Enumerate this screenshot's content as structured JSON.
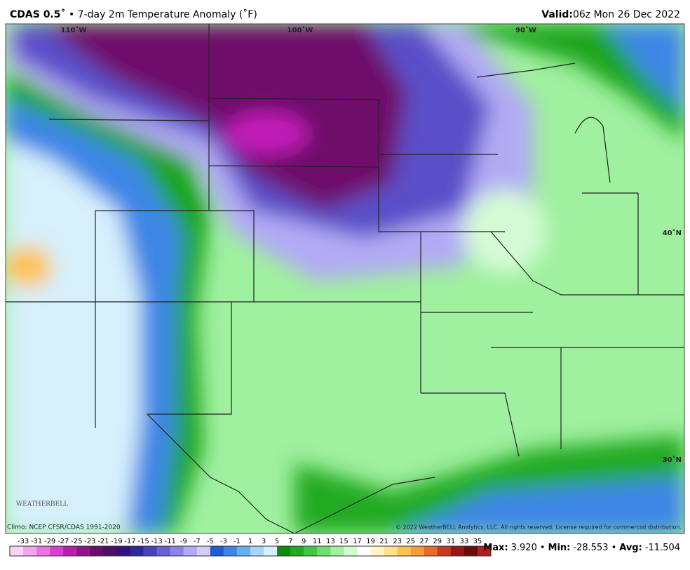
{
  "header": {
    "model": "CDAS 0.5˚",
    "title": "• 7-day 2m Temperature Anomaly (˚F)",
    "valid_label": "Valid:",
    "valid_time": "06z Mon 26 Dec 2022"
  },
  "map": {
    "lon_labels": [
      "110˚W",
      "100˚W",
      "90˚W"
    ],
    "lat_labels": [
      "40˚N",
      "30˚N"
    ],
    "logo": "WEATHERBELL",
    "climo": "Climo: NCEP CFSR/CDAS 1991-2020",
    "copyright": "© 2022 WeatherBELL Analytics, LLC. All rights reserved. License required for commercial distribution."
  },
  "colorbar": {
    "ticks": [
      -33,
      -31,
      -29,
      -27,
      -25,
      -23,
      -21,
      -19,
      -17,
      -15,
      -13,
      -11,
      -9,
      -7,
      -5,
      -3,
      -1,
      1,
      3,
      5,
      7,
      9,
      11,
      13,
      15,
      17,
      19,
      21,
      23,
      25,
      27,
      29,
      31,
      33,
      35
    ],
    "colors": [
      "#fbd3f6",
      "#f4a6ec",
      "#ea74e0",
      "#d840cf",
      "#b91fae",
      "#92128b",
      "#6e0b6a",
      "#4a0f66",
      "#33127d",
      "#2d2a9a",
      "#4a40ba",
      "#6a5fd6",
      "#8d84ea",
      "#b2abf4",
      "#d2cef9",
      "#1f5fcf",
      "#3d86e6",
      "#6aaef2",
      "#a3d6f9",
      "#d6f0fc",
      "#0e8a0e",
      "#22aa22",
      "#40c840",
      "#6ede6e",
      "#a2f0a2",
      "#d4fad4",
      "#ffffff",
      "#fff6c4",
      "#ffe28a",
      "#ffc24e",
      "#f79c3c",
      "#e86a2c",
      "#c93820",
      "#9a1616",
      "#6a0c0c",
      "#b02020"
    ]
  },
  "stats": [
    {
      "label": "Max:",
      "value": "3.920"
    },
    {
      "label": "Min:",
      "value": "-28.553"
    },
    {
      "label": "Avg:",
      "value": "-11.504"
    }
  ],
  "separator": "•"
}
